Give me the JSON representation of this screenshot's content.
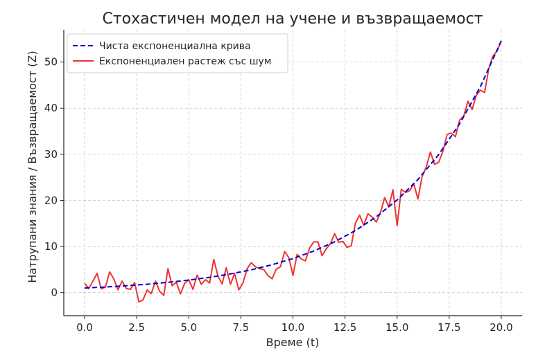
{
  "chart_data": {
    "type": "line",
    "title": "Стохастичен модел на учене и възвращаемост",
    "xlabel": "Време (t)",
    "ylabel": "Натрупани знания / Възвращаемост (Z)",
    "xlim": [
      -1,
      21
    ],
    "ylim": [
      -5,
      57
    ],
    "xticks": [
      0,
      2.5,
      5,
      7.5,
      10,
      12.5,
      15,
      17.5,
      20
    ],
    "xtick_labels": [
      "0.0",
      "2.5",
      "5.0",
      "7.5",
      "10.0",
      "12.5",
      "15.0",
      "17.5",
      "20.0"
    ],
    "yticks": [
      0,
      10,
      20,
      30,
      40,
      50
    ],
    "ytick_labels": [
      "0",
      "10",
      "20",
      "30",
      "40",
      "50"
    ],
    "grid": true,
    "legend_position": "top-left",
    "series": [
      {
        "name": "Чиста експоненциална крива",
        "color": "#0000cc",
        "style": "dashed",
        "x": [
          0,
          1,
          2,
          3,
          4,
          5,
          6,
          7,
          8,
          9,
          10,
          11,
          12,
          13,
          14,
          15,
          16,
          17,
          18,
          19,
          20
        ],
        "y": [
          1.0,
          1.22,
          1.49,
          1.82,
          2.23,
          2.72,
          3.32,
          4.06,
          4.95,
          6.05,
          7.39,
          9.03,
          11.02,
          13.46,
          16.44,
          20.09,
          24.53,
          29.96,
          36.6,
          44.7,
          54.6
        ]
      },
      {
        "name": "Експоненциален растеж със шум",
        "color": "#ee3333",
        "style": "solid",
        "x": [
          0,
          0.2,
          0.4,
          0.6,
          0.8,
          1.0,
          1.2,
          1.4,
          1.6,
          1.8,
          2.0,
          2.2,
          2.4,
          2.6,
          2.8,
          3.0,
          3.2,
          3.4,
          3.6,
          3.8,
          4.0,
          4.2,
          4.4,
          4.6,
          4.8,
          5.0,
          5.2,
          5.4,
          5.6,
          5.8,
          6.0,
          6.2,
          6.4,
          6.6,
          6.8,
          7.0,
          7.2,
          7.4,
          7.6,
          7.8,
          8.0,
          8.2,
          8.4,
          8.6,
          8.8,
          9.0,
          9.2,
          9.4,
          9.6,
          9.8,
          10.0,
          10.2,
          10.4,
          10.6,
          10.8,
          11.0,
          11.2,
          11.4,
          11.6,
          11.8,
          12.0,
          12.2,
          12.4,
          12.6,
          12.8,
          13.0,
          13.2,
          13.4,
          13.6,
          13.8,
          14.0,
          14.2,
          14.4,
          14.6,
          14.8,
          15.0,
          15.2,
          15.4,
          15.6,
          15.8,
          16.0,
          16.2,
          16.4,
          16.6,
          16.8,
          17.0,
          17.2,
          17.4,
          17.6,
          17.8,
          18.0,
          18.2,
          18.4,
          18.6,
          18.8,
          19.0,
          19.2,
          19.4,
          19.6,
          19.8,
          20.0
        ],
        "y": [
          2.0,
          0.9,
          2.5,
          4.2,
          0.8,
          1.2,
          4.5,
          3.0,
          0.6,
          2.5,
          0.9,
          0.7,
          2.2,
          -2.0,
          -1.6,
          0.6,
          -0.2,
          2.5,
          0.3,
          -0.6,
          5.2,
          1.5,
          2.3,
          -0.3,
          2.0,
          2.8,
          0.7,
          3.8,
          1.8,
          2.8,
          2.1,
          7.2,
          3.6,
          1.9,
          5.4,
          1.8,
          4.2,
          0.6,
          2.1,
          5.2,
          6.5,
          5.6,
          5.2,
          5.0,
          3.7,
          3.0,
          5.1,
          5.6,
          8.9,
          7.6,
          3.7,
          8.3,
          7.3,
          6.9,
          9.7,
          11.0,
          11.0,
          8.0,
          9.5,
          10.6,
          12.8,
          10.9,
          11.1,
          9.8,
          10.2,
          15.1,
          16.8,
          14.6,
          17.1,
          16.4,
          15.3,
          17.3,
          20.6,
          18.6,
          22.3,
          14.5,
          22.4,
          21.7,
          22.1,
          23.6,
          20.3,
          25.2,
          27.3,
          30.5,
          27.8,
          28.3,
          30.7,
          34.3,
          34.6,
          33.8,
          37.4,
          38.3,
          41.5,
          39.7,
          42.8,
          43.9,
          43.4,
          48.6,
          51.3,
          52.4,
          54.6
        ]
      }
    ]
  }
}
